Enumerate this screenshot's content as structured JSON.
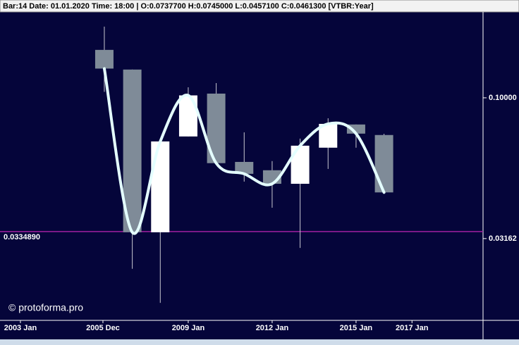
{
  "chart_data": {
    "type": "candlestick",
    "title": "Bar:14 Date: 01.01.2020 Time: 18:00 | O:0.0737700 H:0.0745000 L:0.0457100 C:0.0461300  [VTBR:Year]",
    "watermark": "© protoforma.pro",
    "x": [
      2006,
      2007,
      2008,
      2009,
      2010,
      2011,
      2012,
      2013,
      2014,
      2015,
      2016
    ],
    "open": [
      0.148,
      0.126,
      0.0333,
      0.0729,
      0.1035,
      0.0592,
      0.0553,
      0.0495,
      0.0665,
      0.0804,
      0.07377
    ],
    "high": [
      0.179,
      0.126,
      0.07,
      0.109,
      0.1128,
      0.0754,
      0.0596,
      0.0716,
      0.0846,
      0.0804,
      0.0745
    ],
    "low": [
      0.105,
      0.0247,
      0.0187,
      0.0729,
      0.0586,
      0.0504,
      0.0407,
      0.0293,
      0.0559,
      0.0665,
      0.04571
    ],
    "close": [
      0.127,
      0.0333,
      0.07,
      0.102,
      0.0586,
      0.0537,
      0.0495,
      0.0676,
      0.0808,
      0.0746,
      0.04613
    ],
    "up_color": "#ffffff",
    "down_color": "#7f8b98",
    "line_color": "#e4ffff",
    "xlim": [
      2002.27,
      2019.54
    ],
    "xticks": [
      {
        "value": 2003.0,
        "label": "2003 Jan"
      },
      {
        "value": 2005.95,
        "label": "2005 Dec"
      },
      {
        "value": 2009.0,
        "label": "2009 Jan"
      },
      {
        "value": 2012.0,
        "label": "2012 Jan"
      },
      {
        "value": 2015.0,
        "label": "2015 Jan"
      },
      {
        "value": 2017.0,
        "label": "2017 Jan"
      }
    ],
    "ylim": [
      0.0162,
      0.2018
    ],
    "log_y": true,
    "yticks": [
      {
        "value": 0.1,
        "label": "0.10000"
      },
      {
        "value": 0.031623,
        "label": "0.03162"
      }
    ],
    "hline": {
      "value": 0.033489,
      "label": "0.0334890",
      "color": "#a020a0"
    }
  }
}
